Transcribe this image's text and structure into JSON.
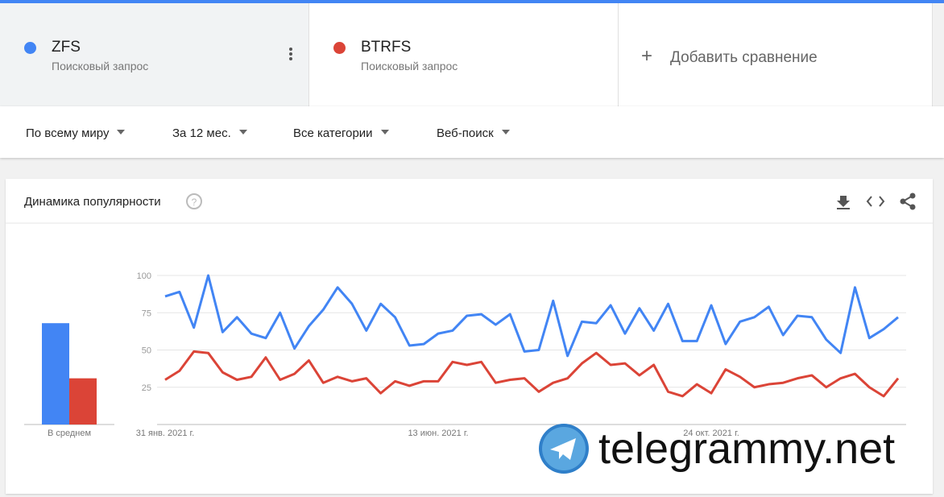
{
  "header": {
    "terms": [
      {
        "name": "ZFS",
        "subtitle": "Поисковый запрос",
        "color": "#4285f4"
      },
      {
        "name": "BTRFS",
        "subtitle": "Поисковый запрос",
        "color": "#db4437"
      }
    ],
    "add": "Добавить сравнение"
  },
  "filters": [
    "По всему миру",
    "За 12 мес.",
    "Все категории",
    "Веб-поиск"
  ],
  "watermark": "telegrammy.net",
  "chart_data": {
    "type": "line",
    "title": "Динамика популярности",
    "average_label": "В среднем",
    "categories": [
      "31 янв. 2021 г.",
      null,
      null,
      null,
      null,
      null,
      null,
      null,
      null,
      null,
      null,
      null,
      null,
      null,
      null,
      null,
      null,
      null,
      null,
      "13 июн. 2021 г.",
      null,
      null,
      null,
      null,
      null,
      null,
      null,
      null,
      null,
      null,
      null,
      null,
      null,
      null,
      null,
      null,
      null,
      null,
      "24 окт. 2021 г.",
      null,
      null,
      null,
      null,
      null,
      null,
      null,
      null,
      null,
      null,
      null,
      null,
      null
    ],
    "series": [
      {
        "name": "ZFS",
        "color": "#4285f4",
        "average": 68,
        "values": [
          86,
          89,
          65,
          100,
          62,
          72,
          61,
          58,
          75,
          51,
          66,
          77,
          92,
          81,
          63,
          81,
          72,
          53,
          54,
          61,
          63,
          73,
          74,
          67,
          74,
          49,
          50,
          83,
          46,
          69,
          68,
          80,
          61,
          78,
          63,
          81,
          56,
          56,
          80,
          54,
          69,
          72,
          79,
          60,
          73,
          72,
          57,
          48,
          92,
          58,
          64,
          72
        ]
      },
      {
        "name": "BTRFS",
        "color": "#db4437",
        "average": 31,
        "values": [
          30,
          36,
          49,
          48,
          35,
          30,
          32,
          45,
          30,
          34,
          43,
          28,
          32,
          29,
          31,
          21,
          29,
          26,
          29,
          29,
          42,
          40,
          42,
          28,
          30,
          31,
          22,
          28,
          31,
          41,
          48,
          40,
          41,
          33,
          40,
          22,
          19,
          27,
          21,
          37,
          32,
          25,
          27,
          28,
          31,
          33,
          25,
          31,
          34,
          25,
          19,
          31
        ]
      }
    ],
    "ylim": [
      0,
      100
    ],
    "yticks": [
      25,
      50,
      75,
      100
    ],
    "grid": true
  }
}
